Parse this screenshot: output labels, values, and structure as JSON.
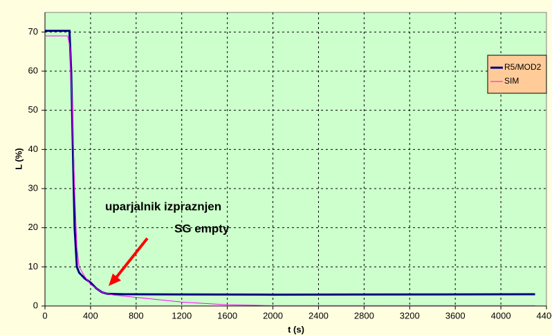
{
  "chart_data": {
    "type": "line",
    "xlabel": "t (s)",
    "ylabel": "L (%)",
    "annotations": [
      "uparjalnik izpraznjen",
      "SG empty"
    ],
    "xlim": [
      0,
      4400
    ],
    "xticks": [
      0,
      400,
      800,
      1200,
      1600,
      2000,
      2400,
      2800,
      3200,
      3600,
      4000,
      4400
    ],
    "ylim": [
      0,
      75
    ],
    "yticks": [
      0,
      10,
      20,
      30,
      40,
      50,
      60,
      70
    ],
    "grid": true,
    "legend": "upper right",
    "series": [
      {
        "name": "R5/MOD2",
        "color": "#000080",
        "x": [
          0,
          215,
          230,
          245,
          260,
          280,
          300,
          350,
          400,
          450,
          500,
          550,
          700,
          2000,
          4300
        ],
        "values": [
          70.3,
          70.3,
          60,
          40,
          20,
          10,
          8.5,
          7,
          6,
          4.5,
          3.5,
          3.1,
          3.0,
          2.9,
          3.0
        ]
      },
      {
        "name": "SIM",
        "color": "#ff00ff",
        "x": [
          0,
          200,
          220,
          240,
          260,
          280,
          300,
          350,
          400,
          450,
          500,
          600,
          800,
          1200,
          1600,
          2000,
          4300
        ],
        "values": [
          69,
          69,
          66,
          50,
          30,
          15,
          10,
          7.5,
          5.5,
          4.5,
          3.5,
          2.8,
          2.2,
          1.0,
          0.3,
          0.1,
          0.1
        ]
      }
    ]
  }
}
